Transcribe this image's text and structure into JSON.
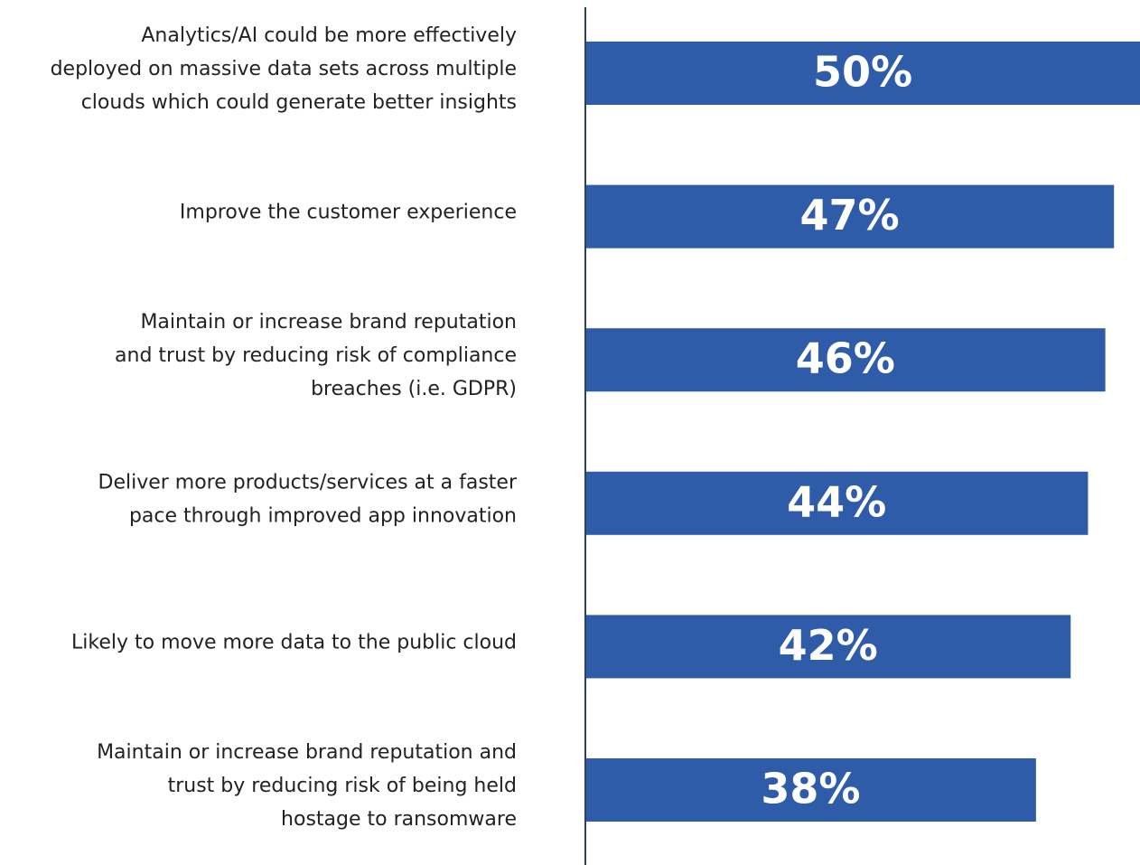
{
  "chart_data": {
    "type": "bar",
    "orientation": "horizontal",
    "categories": [
      [
        "Analytics/AI could be more effectively",
        "deployed on massive data sets across multiple",
        "clouds which could generate better insights"
      ],
      [
        "Improve the customer experience"
      ],
      [
        "Maintain or increase brand reputation",
        "and trust by reducing risk of compliance",
        "breaches (i.e. GDPR)"
      ],
      [
        "Deliver more products/services at a faster",
        "pace through improved app innovation"
      ],
      [
        "Likely to move more data to the public cloud"
      ],
      [
        "Maintain or increase brand reputation and",
        "trust by reducing risk of being held",
        "hostage to ransomware"
      ]
    ],
    "values": [
      50,
      47,
      46,
      44,
      42,
      38
    ],
    "value_labels": [
      "50%",
      "47%",
      "46%",
      "44%",
      "42%",
      "38%"
    ],
    "color": "#2e5ca8",
    "xlim": [
      18,
      50
    ]
  }
}
